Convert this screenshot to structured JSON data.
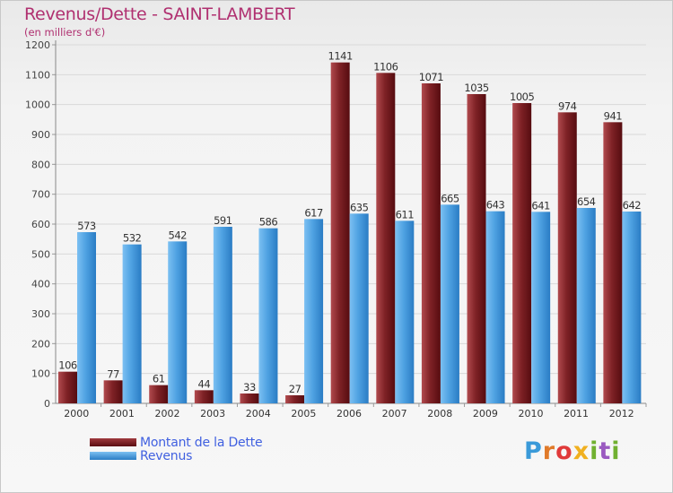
{
  "title": "Revenus/Dette - SAINT-LAMBERT",
  "subtitle": "(en milliers d'€)",
  "legend": {
    "dette": "Montant de la Dette",
    "revenus": "Revenus"
  },
  "logo": "Proxiti",
  "colors": {
    "dette": "#7a1a1e",
    "revenus": "#4a9fe0",
    "title": "#b03070",
    "legend_text": "#4060e0"
  },
  "chart_data": {
    "type": "bar",
    "title": "Revenus/Dette - SAINT-LAMBERT",
    "subtitle": "(en milliers d'€)",
    "categories": [
      "2000",
      "2001",
      "2002",
      "2003",
      "2004",
      "2005",
      "2006",
      "2007",
      "2008",
      "2009",
      "2010",
      "2011",
      "2012"
    ],
    "series": [
      {
        "name": "Montant de la Dette",
        "values": [
          106,
          77,
          61,
          44,
          33,
          27,
          1141,
          1106,
          1071,
          1035,
          1005,
          974,
          941
        ]
      },
      {
        "name": "Revenus",
        "values": [
          573,
          532,
          542,
          591,
          586,
          617,
          635,
          611,
          665,
          643,
          641,
          654,
          642
        ]
      }
    ],
    "y_ticks": [
      0,
      100,
      200,
      300,
      400,
      500,
      600,
      700,
      800,
      900,
      1000,
      1100,
      1200
    ],
    "ylim": [
      0,
      1200
    ],
    "grid": true,
    "legend_position": "bottom-left"
  }
}
